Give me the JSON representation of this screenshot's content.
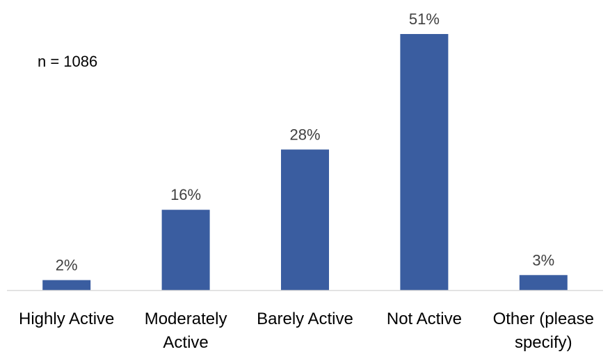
{
  "chart_data": {
    "type": "bar",
    "title": "",
    "xlabel": "",
    "ylabel": "",
    "annotation": "n = 1086",
    "categories": [
      [
        "Highly Active"
      ],
      [
        "Moderately",
        "Active"
      ],
      [
        "Barely Active"
      ],
      [
        "Not Active"
      ],
      [
        "Other (please",
        "specify)"
      ]
    ],
    "values": [
      2,
      16,
      28,
      51,
      3
    ],
    "data_labels": [
      "2%",
      "16%",
      "28%",
      "51%",
      "3%"
    ],
    "ylim": [
      0,
      51
    ],
    "grid": false,
    "legend": "none",
    "bar_color": "#3A5DA0",
    "label_color": "#404040",
    "axis_color": "#D9D9D9"
  }
}
